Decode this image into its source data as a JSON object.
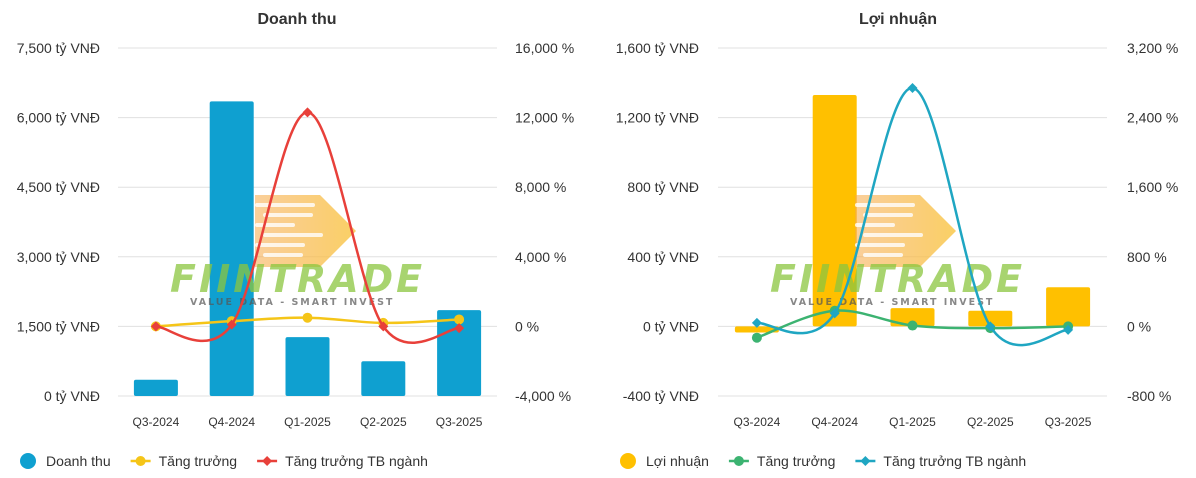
{
  "watermark": {
    "brand": "FIINTRADE",
    "tagline": "VALUE DATA - SMART INVEST"
  },
  "chart_data": [
    {
      "type": "bar",
      "title": "Doanh thu",
      "categories": [
        "Q3-2024",
        "Q4-2024",
        "Q1-2025",
        "Q2-2025",
        "Q3-2025"
      ],
      "y_left": {
        "min": 0,
        "max": 7500,
        "ticks": [
          0,
          1500,
          3000,
          4500,
          6000,
          7500
        ],
        "unit": "tỷ VNĐ"
      },
      "y_right": {
        "min": -4000,
        "max": 16000,
        "ticks": [
          -4000,
          0,
          4000,
          8000,
          12000,
          16000
        ],
        "unit": "%"
      },
      "grid": true,
      "legend_position": "bottom-left",
      "series": [
        {
          "name": "Doanh thu",
          "kind": "bar",
          "axis": "left",
          "color": "#0fa0d0",
          "values": [
            350,
            6350,
            1270,
            750,
            1850
          ]
        },
        {
          "name": "Tăng trưởng",
          "kind": "line",
          "axis": "right",
          "color": "#f5c518",
          "values": [
            0,
            300,
            500,
            200,
            400
          ]
        },
        {
          "name": "Tăng trưởng TB ngành",
          "kind": "line",
          "axis": "right",
          "color": "#e8403a",
          "values": [
            0,
            100,
            12300,
            0,
            -100
          ]
        }
      ]
    },
    {
      "type": "bar",
      "title": "Lợi nhuận",
      "categories": [
        "Q3-2024",
        "Q4-2024",
        "Q1-2025",
        "Q2-2025",
        "Q3-2025"
      ],
      "y_left": {
        "min": -400,
        "max": 1600,
        "ticks": [
          -400,
          0,
          400,
          800,
          1200,
          1600
        ],
        "unit": "tỷ VNĐ"
      },
      "y_right": {
        "min": -800,
        "max": 3200,
        "ticks": [
          -800,
          0,
          800,
          1600,
          2400,
          3200
        ],
        "unit": "%"
      },
      "grid": true,
      "legend_position": "bottom-left",
      "series": [
        {
          "name": "Lợi nhuận",
          "kind": "bar",
          "axis": "left",
          "color": "#ffc000",
          "values": [
            -35,
            1330,
            105,
            90,
            225
          ]
        },
        {
          "name": "Tăng trưởng",
          "kind": "line",
          "axis": "right",
          "color": "#3cb371",
          "values": [
            -130,
            180,
            10,
            -20,
            0
          ]
        },
        {
          "name": "Tăng trưởng TB ngành",
          "kind": "line",
          "axis": "right",
          "color": "#1fa6c2",
          "values": [
            40,
            150,
            2740,
            0,
            -40
          ]
        }
      ]
    }
  ]
}
